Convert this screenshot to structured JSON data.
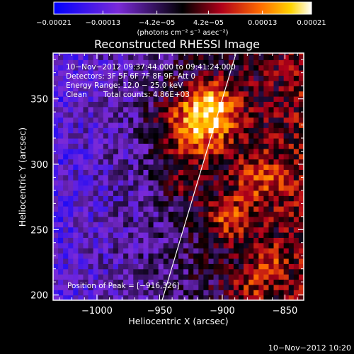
{
  "chart_data": {
    "type": "heatmap",
    "title": "Reconstructed RHESSI Image",
    "xlabel": "Heliocentric X (arcsec)",
    "ylabel": "Heliocentric Y (arcsec)",
    "xlim": [
      -1035,
      -835
    ],
    "ylim": [
      196,
      385
    ],
    "x_ticks": [
      {
        "value": -1000,
        "label": "−1000"
      },
      {
        "value": -950,
        "label": "−950"
      },
      {
        "value": -900,
        "label": "−900"
      },
      {
        "value": -850,
        "label": "−850"
      }
    ],
    "y_ticks": [
      {
        "value": 200,
        "label": "200"
      },
      {
        "value": 250,
        "label": "250"
      },
      {
        "value": 300,
        "label": "300"
      },
      {
        "value": 350,
        "label": "350"
      }
    ],
    "colorbar": {
      "unit_label": "(photons cm⁻² s⁻¹ asec⁻²)",
      "min": -0.00021,
      "max": 0.00021,
      "ticks": [
        {
          "value": -0.00021,
          "label": "−0.00021"
        },
        {
          "value": -0.00013,
          "label": "−0.00013"
        },
        {
          "value": -4.2e-05,
          "label": "−4.2e−05"
        },
        {
          "value": 4.2e-05,
          "label": "4.2e−05"
        },
        {
          "value": 0.00013,
          "label": "0.00013"
        },
        {
          "value": 0.00021,
          "label": "0.00021"
        }
      ]
    },
    "annotations": {
      "time_range": "10−Nov−2012 09:37:44.000 to 09:41:24.000",
      "detectors": "Detectors: 3F 5F 6F 7F 8F 9F, Att 0",
      "energy_range": "Energy Range: 12.0 − 25.0 keV",
      "clean_label": "Clean",
      "total_counts": "Total counts: 4.86E+03",
      "peak_position": "Position of Peak = [−916,326]"
    },
    "peak": {
      "x": -916,
      "y": 326
    },
    "limb_line": [
      {
        "x": -948,
        "y": 196
      },
      {
        "x": -889,
        "y": 385
      }
    ],
    "emission_sources": [
      {
        "x": -922,
        "y": 330,
        "sigma": 20,
        "amplitude": 0.00019
      },
      {
        "x": -905,
        "y": 345,
        "sigma": 12,
        "amplitude": 0.00012
      },
      {
        "x": -895,
        "y": 260,
        "sigma": 12,
        "amplitude": 0.00011
      },
      {
        "x": -870,
        "y": 290,
        "sigma": 14,
        "amplitude": 9e-05
      },
      {
        "x": -865,
        "y": 225,
        "sigma": 10,
        "amplitude": 8e-05
      },
      {
        "x": -930,
        "y": 285,
        "sigma": 10,
        "amplitude": 6e-05
      },
      {
        "x": -880,
        "y": 205,
        "sigma": 10,
        "amplitude": 7e-05
      }
    ],
    "background_gradient": {
      "left_value": -0.00013,
      "right_value": 4e-05
    },
    "grid": false,
    "colormap": "rainbow-black: blue-purple-black-red-orange-yellow-white"
  },
  "footer": {
    "timestamp": "10−Nov−2012 10:20"
  }
}
